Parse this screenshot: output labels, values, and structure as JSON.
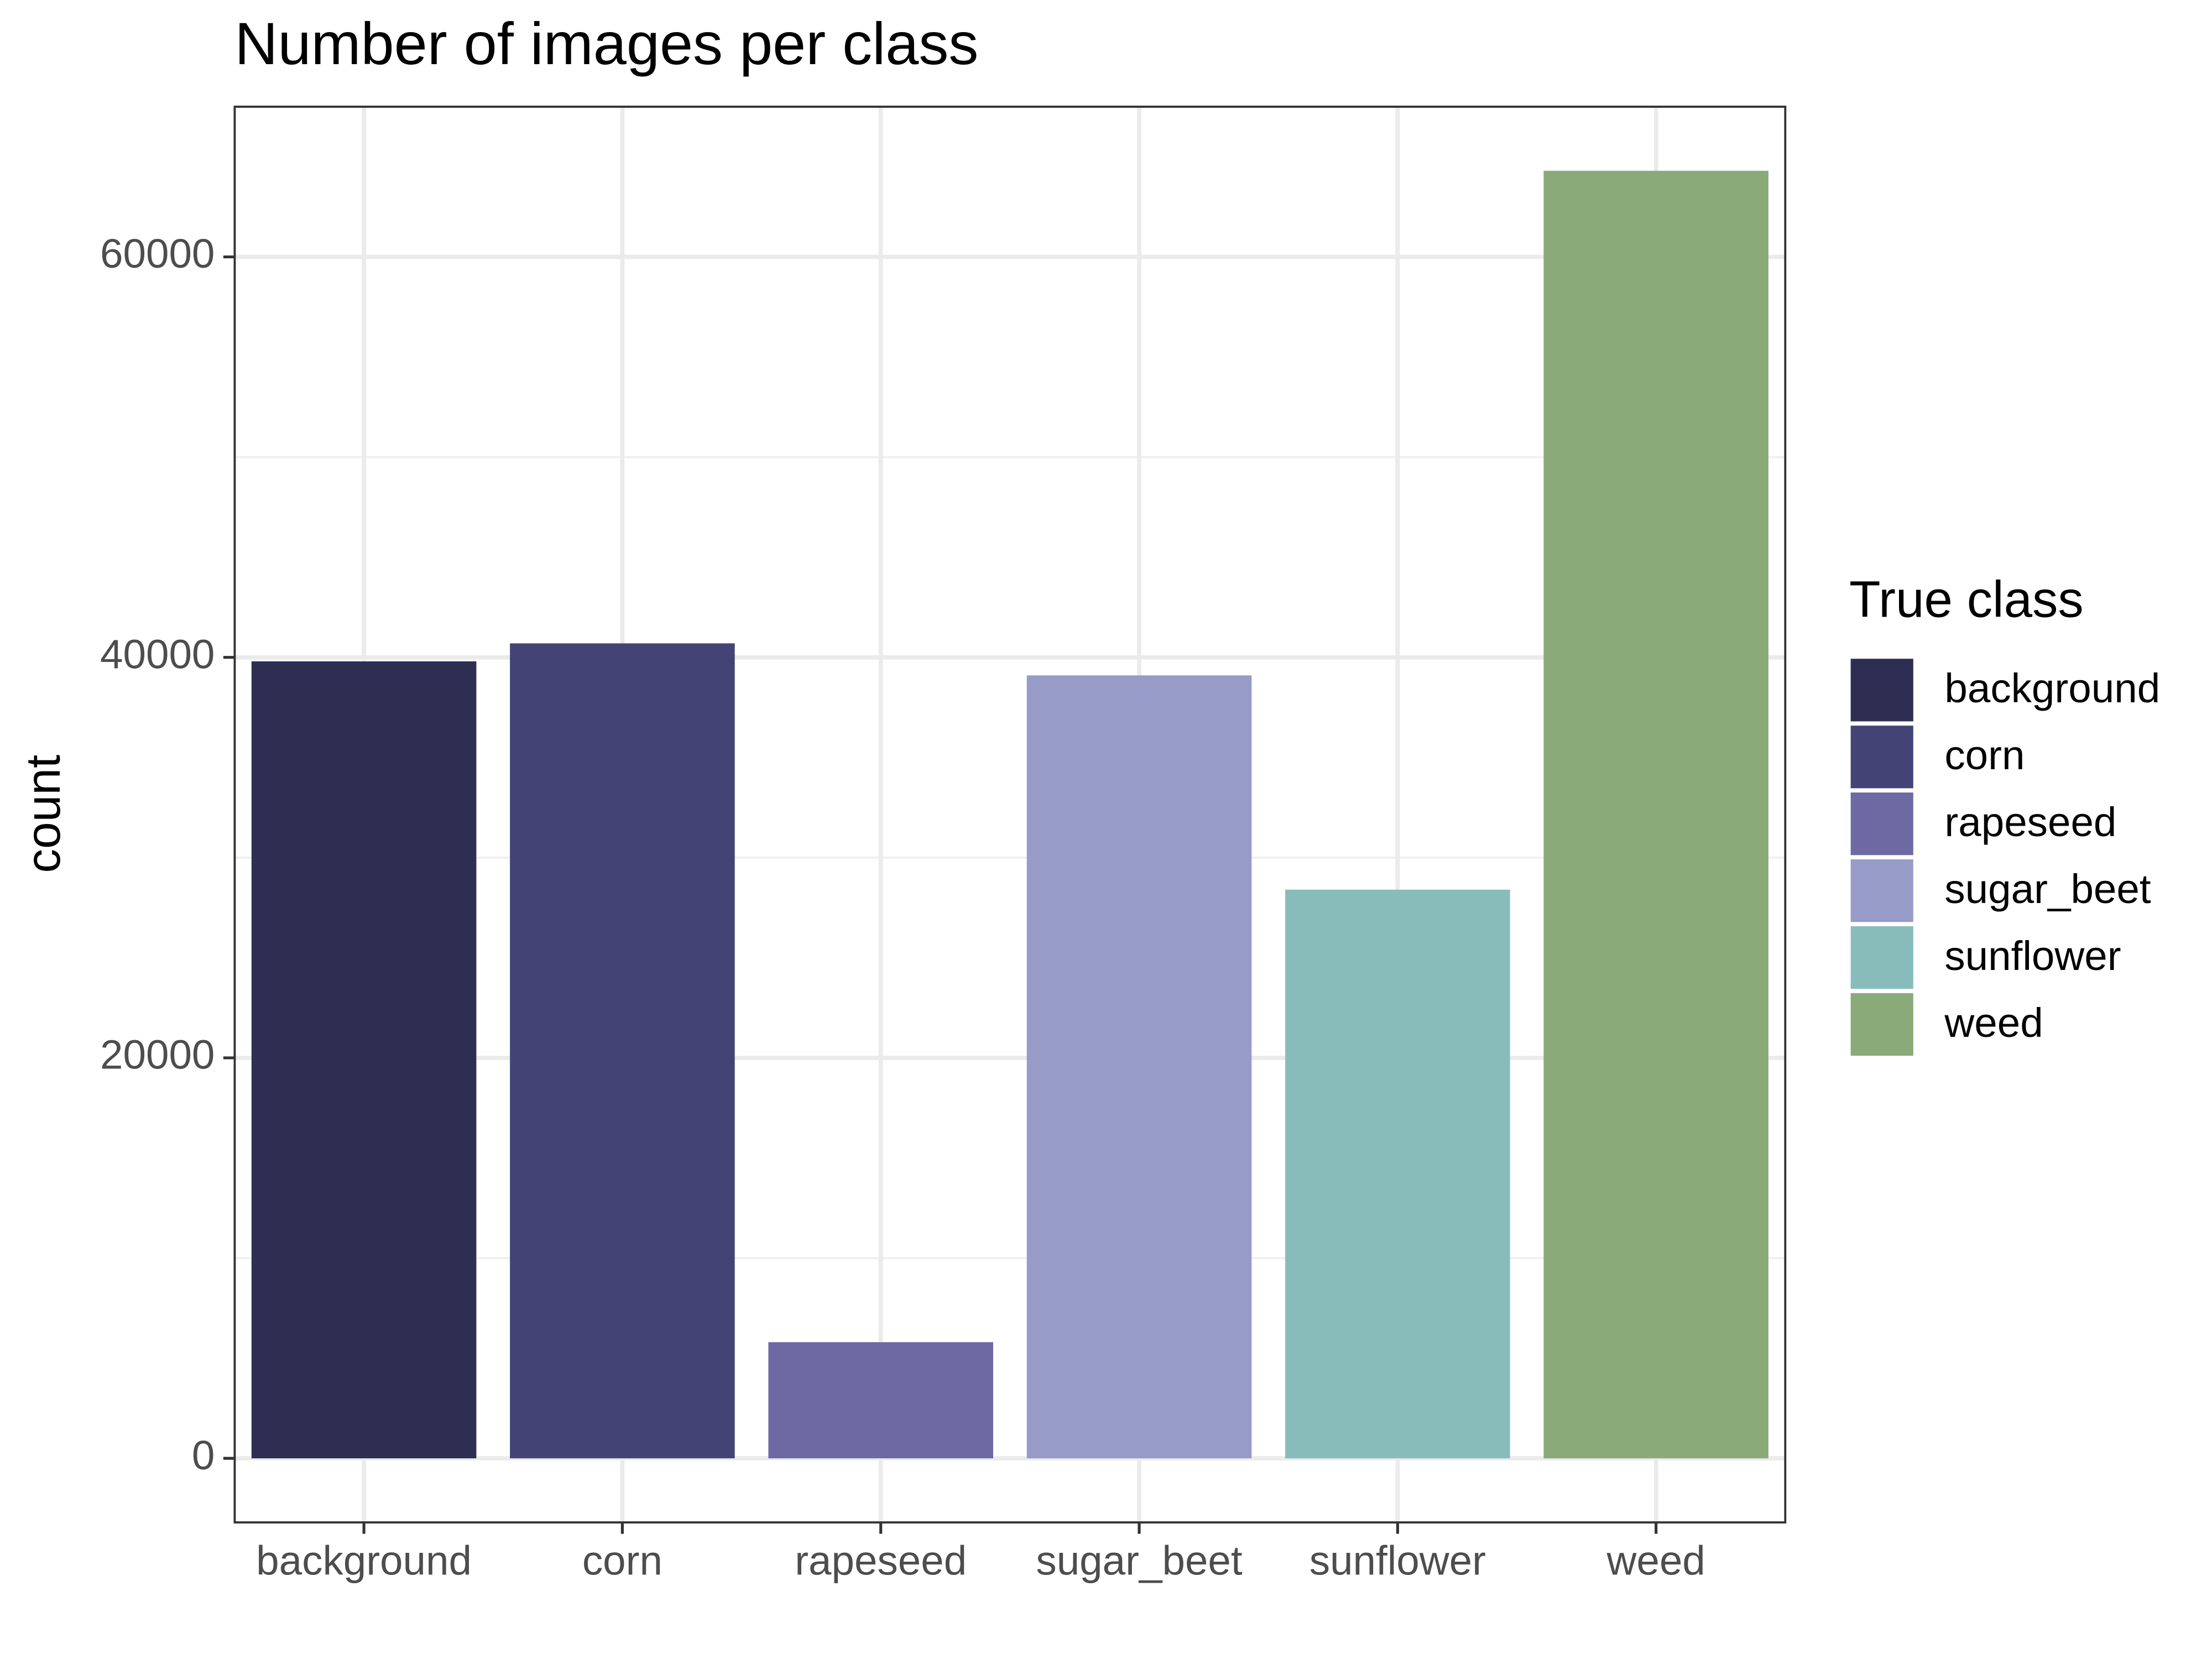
{
  "chart_data": {
    "type": "bar",
    "title": "Number of images per class",
    "y_label": "count",
    "categories": [
      "background",
      "corn",
      "rapeseed",
      "sugar_beet",
      "sunflower",
      "weed"
    ],
    "values": [
      39800,
      40700,
      5800,
      39100,
      28400,
      64300
    ],
    "colors": [
      "#2d2e52",
      "#434475",
      "#6d6aa3",
      "#979bc8",
      "#88bcbb",
      "#8aaa7a"
    ],
    "ylim": [
      -3200,
      67500
    ],
    "yticks": [
      0,
      20000,
      40000,
      60000
    ],
    "grid": true,
    "legend_title": "True class",
    "legend_position": "right"
  }
}
